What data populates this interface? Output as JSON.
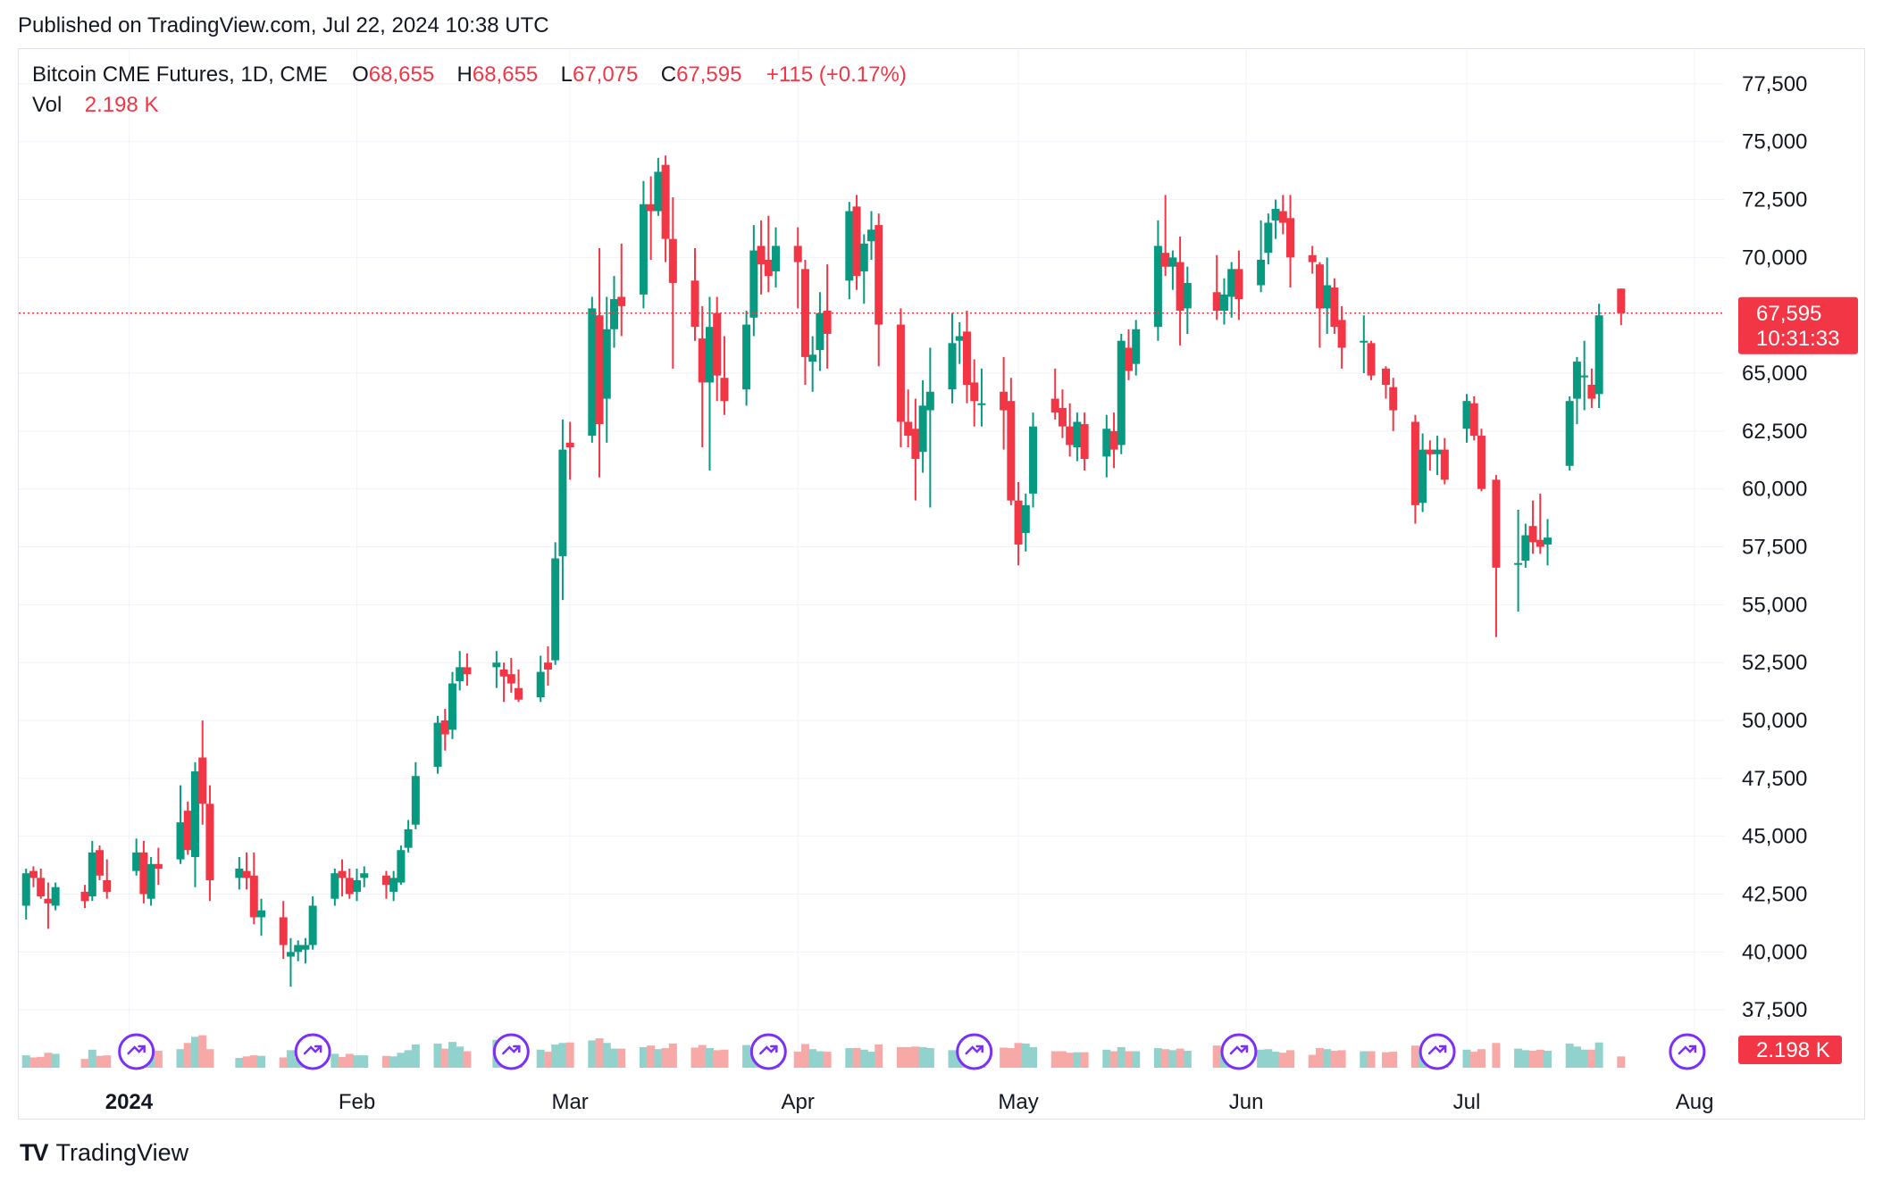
{
  "header": {
    "published": "Published on TradingView.com, Jul 22, 2024 10:38 UTC"
  },
  "legend": {
    "symbol": "Bitcoin CME Futures, 1D, CME",
    "o_label": "O",
    "o_value": "68,655",
    "h_label": "H",
    "h_value": "68,655",
    "l_label": "L",
    "l_value": "67,075",
    "c_label": "C",
    "c_value": "67,595",
    "change": "+115 (+0.17%)",
    "vol_label": "Vol",
    "vol_value": "2.198 K"
  },
  "footer": {
    "logo": "TV",
    "brand": "TradingView"
  },
  "colors": {
    "up": "#089981",
    "down": "#f23645",
    "up_volume": "#92d2cc",
    "down_volume": "#f7a9a7",
    "grid": "#f0f3fa",
    "event_icon": "#7b2ff7"
  },
  "chart_data": {
    "type": "candlestick",
    "symbol": "Bitcoin CME Futures, 1D, CME",
    "ylim": [
      35000,
      79000
    ],
    "y_ticks": [
      37500,
      40000,
      42500,
      45000,
      47500,
      50000,
      52500,
      55000,
      57500,
      60000,
      62500,
      65000,
      67500,
      70000,
      72500,
      75000,
      77500
    ],
    "y_tick_labels": [
      "37,500",
      "40,000",
      "42,500",
      "45,000",
      "47,500",
      "50,000",
      "52,500",
      "55,000",
      "57,500",
      "60,000",
      "62,500",
      "65,000",
      "67,500",
      "70,000",
      "72,500",
      "75,000",
      "77,500"
    ],
    "x_ticks": [
      {
        "date": "2024-01-01",
        "label": "2024",
        "bold": true
      },
      {
        "date": "2024-02-01",
        "label": "Feb"
      },
      {
        "date": "2024-03-01",
        "label": "Mar"
      },
      {
        "date": "2024-04-01",
        "label": "Apr"
      },
      {
        "date": "2024-05-01",
        "label": "May"
      },
      {
        "date": "2024-06-01",
        "label": "Jun"
      },
      {
        "date": "2024-07-01",
        "label": "Jul"
      },
      {
        "date": "2024-08-01",
        "label": "Aug"
      }
    ],
    "x_range": [
      "2023-12-17",
      "2024-08-05"
    ],
    "last_price": {
      "value": 67595,
      "label": "67,595",
      "countdown": "10:31:33"
    },
    "volume_label": "2.198 K",
    "volume_max": 45000,
    "candles": [
      [
        "2023-12-18",
        42000,
        43600,
        41400,
        43400,
        2400
      ],
      [
        "2023-12-19",
        43500,
        43700,
        42800,
        43200,
        2000
      ],
      [
        "2023-12-20",
        43200,
        43600,
        42300,
        42400,
        2100
      ],
      [
        "2023-12-21",
        42300,
        43000,
        41000,
        42100,
        2900
      ],
      [
        "2023-12-22",
        42000,
        43000,
        41800,
        42800,
        2700
      ],
      [
        "2023-12-26",
        42600,
        42900,
        41900,
        42200,
        1700
      ],
      [
        "2023-12-27",
        42400,
        44800,
        42200,
        44300,
        3500
      ],
      [
        "2023-12-28",
        44400,
        44600,
        43100,
        43300,
        2300
      ],
      [
        "2023-12-29",
        43100,
        44000,
        42300,
        42600,
        2400
      ],
      [
        "2024-01-02",
        43500,
        44900,
        43300,
        44300,
        3800
      ],
      [
        "2024-01-03",
        44300,
        44800,
        42100,
        42500,
        5400
      ],
      [
        "2024-01-04",
        42300,
        44100,
        42000,
        43800,
        3600
      ],
      [
        "2024-01-05",
        43800,
        44500,
        42900,
        43600,
        3300
      ],
      [
        "2024-01-08",
        44000,
        47200,
        43800,
        45600,
        3600
      ],
      [
        "2024-01-09",
        46100,
        46500,
        44200,
        44400,
        4800
      ],
      [
        "2024-01-10",
        44100,
        48200,
        42800,
        47800,
        6000
      ],
      [
        "2024-01-11",
        48400,
        50000,
        45500,
        46400,
        6300
      ],
      [
        "2024-01-12",
        46400,
        47200,
        42200,
        43100,
        3600
      ],
      [
        "2024-01-16",
        43200,
        44100,
        42700,
        43600,
        1900
      ],
      [
        "2024-01-17",
        43500,
        44300,
        42700,
        43200,
        2200
      ],
      [
        "2024-01-18",
        43300,
        44300,
        41200,
        41500,
        2400
      ],
      [
        "2024-01-19",
        41500,
        42300,
        40700,
        41800,
        2300
      ],
      [
        "2024-01-22",
        41500,
        42200,
        39700,
        40300,
        2000
      ],
      [
        "2024-01-23",
        39800,
        40600,
        38500,
        40000,
        3400
      ],
      [
        "2024-01-24",
        40000,
        40500,
        39600,
        40300,
        1800
      ],
      [
        "2024-01-25",
        40100,
        40600,
        39500,
        40300,
        1800
      ],
      [
        "2024-01-26",
        40300,
        42400,
        40100,
        42000,
        3100
      ],
      [
        "2024-01-29",
        42300,
        43600,
        42000,
        43400,
        2700
      ],
      [
        "2024-01-30",
        43500,
        44000,
        42400,
        43200,
        2100
      ],
      [
        "2024-01-31",
        43200,
        43600,
        42300,
        42500,
        2700
      ],
      [
        "2024-02-01",
        42600,
        43600,
        42200,
        43100,
        2400
      ],
      [
        "2024-02-02",
        43200,
        43700,
        42800,
        43400,
        2400
      ],
      [
        "2024-02-05",
        43300,
        43500,
        42300,
        42900,
        2300
      ],
      [
        "2024-02-06",
        42600,
        43500,
        42200,
        43200,
        2200
      ],
      [
        "2024-02-07",
        43000,
        44600,
        42900,
        44400,
        2900
      ],
      [
        "2024-02-08",
        44500,
        45700,
        44300,
        45300,
        3400
      ],
      [
        "2024-02-09",
        45500,
        48200,
        45300,
        47600,
        4500
      ],
      [
        "2024-02-12",
        48000,
        50200,
        47700,
        49900,
        4700
      ],
      [
        "2024-02-13",
        50000,
        50500,
        48700,
        49400,
        3700
      ],
      [
        "2024-02-14",
        49600,
        52100,
        49200,
        51600,
        5000
      ],
      [
        "2024-02-15",
        51700,
        53000,
        51300,
        52300,
        4100
      ],
      [
        "2024-02-16",
        52300,
        52900,
        51500,
        52000,
        3200
      ],
      [
        "2024-02-20",
        52300,
        53000,
        51400,
        52500,
        5400
      ],
      [
        "2024-02-21",
        52200,
        52500,
        50800,
        51900,
        4200
      ],
      [
        "2024-02-22",
        52000,
        52700,
        51200,
        51600,
        3200
      ],
      [
        "2024-02-23",
        51400,
        52200,
        50800,
        50900,
        3100
      ],
      [
        "2024-02-26",
        51000,
        52800,
        50800,
        52100,
        3500
      ],
      [
        "2024-02-27",
        52500,
        53200,
        51500,
        52200,
        3100
      ],
      [
        "2024-02-28",
        52600,
        57700,
        52400,
        57000,
        4500
      ],
      [
        "2024-02-29",
        57100,
        63000,
        55200,
        61700,
        4800
      ],
      [
        "2024-03-01",
        62000,
        62900,
        60400,
        61800,
        4900
      ],
      [
        "2024-03-04",
        62300,
        68300,
        62000,
        67800,
        5300
      ],
      [
        "2024-03-05",
        67500,
        70400,
        60500,
        62800,
        5700
      ],
      [
        "2024-03-06",
        63900,
        68300,
        62000,
        66900,
        4800
      ],
      [
        "2024-03-07",
        66900,
        69200,
        66100,
        68200,
        3700
      ],
      [
        "2024-03-08",
        68300,
        70600,
        66600,
        67900,
        3700
      ],
      [
        "2024-03-11",
        68400,
        73300,
        67800,
        72300,
        4000
      ],
      [
        "2024-03-12",
        72300,
        73500,
        69900,
        72000,
        4300
      ],
      [
        "2024-03-13",
        72000,
        74300,
        71800,
        73700,
        3600
      ],
      [
        "2024-03-14",
        74000,
        74400,
        69800,
        70800,
        3800
      ],
      [
        "2024-03-15",
        70800,
        72600,
        65200,
        68900,
        4700
      ],
      [
        "2024-03-18",
        69000,
        70400,
        66400,
        67000,
        3900
      ],
      [
        "2024-03-19",
        66500,
        67900,
        61800,
        64600,
        4400
      ],
      [
        "2024-03-20",
        64600,
        68300,
        60800,
        67000,
        3800
      ],
      [
        "2024-03-21",
        67600,
        68300,
        63800,
        64900,
        3400
      ],
      [
        "2024-03-22",
        64800,
        66600,
        63200,
        63800,
        3500
      ],
      [
        "2024-03-25",
        64300,
        67700,
        63600,
        67100,
        4400
      ],
      [
        "2024-03-26",
        67400,
        71400,
        66600,
        70300,
        3900
      ],
      [
        "2024-03-27",
        70500,
        71600,
        68400,
        69700,
        4000
      ],
      [
        "2024-03-28",
        69900,
        71800,
        68500,
        69200,
        3000
      ],
      [
        "2024-03-29",
        69400,
        71300,
        68700,
        70500,
        3100
      ],
      [
        "2024-04-01",
        70500,
        71300,
        67800,
        69800,
        3100
      ],
      [
        "2024-04-02",
        69500,
        69900,
        64500,
        65700,
        4600
      ],
      [
        "2024-04-03",
        65500,
        66600,
        64200,
        65800,
        3600
      ],
      [
        "2024-04-04",
        66000,
        68500,
        65100,
        67600,
        3200
      ],
      [
        "2024-04-05",
        67700,
        69700,
        65200,
        66700,
        3100
      ],
      [
        "2024-04-08",
        69000,
        72400,
        68200,
        72000,
        3800
      ],
      [
        "2024-04-09",
        72200,
        72700,
        68600,
        69200,
        3800
      ],
      [
        "2024-04-10",
        69400,
        71000,
        68000,
        70600,
        3500
      ],
      [
        "2024-04-11",
        70700,
        72000,
        69900,
        71200,
        3100
      ],
      [
        "2024-04-12",
        71400,
        71900,
        65300,
        67100,
        4500
      ],
      [
        "2024-04-15",
        67100,
        67800,
        61800,
        62900,
        4000
      ],
      [
        "2024-04-16",
        62900,
        64300,
        61800,
        62300,
        4000
      ],
      [
        "2024-04-17",
        62600,
        63900,
        59500,
        61300,
        4100
      ],
      [
        "2024-04-18",
        61600,
        64700,
        60700,
        63600,
        4000
      ],
      [
        "2024-04-19",
        63400,
        66100,
        59200,
        64200,
        3800
      ],
      [
        "2024-04-22",
        64300,
        67600,
        63700,
        66300,
        3400
      ],
      [
        "2024-04-23",
        66400,
        67200,
        65400,
        66600,
        3300
      ],
      [
        "2024-04-24",
        66800,
        67700,
        63700,
        64500,
        3700
      ],
      [
        "2024-04-25",
        64600,
        65600,
        62700,
        63800,
        3600
      ],
      [
        "2024-04-26",
        63700,
        65200,
        62700,
        63700,
        3000
      ],
      [
        "2024-04-29",
        64200,
        65700,
        61700,
        63400,
        3900
      ],
      [
        "2024-04-30",
        63800,
        64800,
        59300,
        59500,
        3800
      ],
      [
        "2024-05-01",
        59500,
        60300,
        56700,
        57600,
        4800
      ],
      [
        "2024-05-02",
        58100,
        59800,
        57300,
        59300,
        4700
      ],
      [
        "2024-05-03",
        59800,
        63300,
        59200,
        62700,
        4000
      ],
      [
        "2024-05-06",
        63900,
        65200,
        63000,
        63300,
        3200
      ],
      [
        "2024-05-07",
        63500,
        64300,
        62200,
        62700,
        3200
      ],
      [
        "2024-05-08",
        62700,
        63700,
        61400,
        61900,
        2900
      ],
      [
        "2024-05-09",
        61800,
        63300,
        61200,
        62900,
        3000
      ],
      [
        "2024-05-10",
        62800,
        63300,
        60800,
        61300,
        3000
      ],
      [
        "2024-05-13",
        61400,
        63200,
        60500,
        62600,
        3500
      ],
      [
        "2024-05-14",
        62500,
        63300,
        60900,
        61700,
        3200
      ],
      [
        "2024-05-15",
        61900,
        66700,
        61500,
        66400,
        4000
      ],
      [
        "2024-05-16",
        66100,
        66900,
        64700,
        65100,
        3200
      ],
      [
        "2024-05-17",
        65400,
        67300,
        64900,
        66900,
        3200
      ],
      [
        "2024-05-20",
        67000,
        71600,
        66400,
        70500,
        3800
      ],
      [
        "2024-05-21",
        70200,
        72700,
        69200,
        69600,
        3600
      ],
      [
        "2024-05-22",
        69600,
        70300,
        68600,
        70000,
        3400
      ],
      [
        "2024-05-23",
        69800,
        70900,
        66200,
        67700,
        3700
      ],
      [
        "2024-05-24",
        67800,
        69600,
        66700,
        68900,
        3300
      ],
      [
        "2024-05-28",
        68500,
        70100,
        67300,
        67700,
        4300
      ],
      [
        "2024-05-29",
        67700,
        69100,
        67100,
        68400,
        2800
      ],
      [
        "2024-05-30",
        68300,
        69800,
        67400,
        69500,
        3300
      ],
      [
        "2024-05-31",
        69500,
        70300,
        67300,
        68200,
        3000
      ],
      [
        "2024-06-03",
        68800,
        71600,
        68500,
        69900,
        3500
      ],
      [
        "2024-06-04",
        70200,
        71900,
        69700,
        71500,
        3600
      ],
      [
        "2024-06-05",
        71600,
        72500,
        70800,
        72100,
        3100
      ],
      [
        "2024-06-06",
        72000,
        72700,
        71000,
        71500,
        2900
      ],
      [
        "2024-06-07",
        71700,
        72700,
        68700,
        70000,
        3400
      ],
      [
        "2024-06-10",
        70100,
        70500,
        69300,
        69800,
        2500
      ],
      [
        "2024-06-11",
        69700,
        69800,
        66100,
        67800,
        3800
      ],
      [
        "2024-06-12",
        67800,
        70000,
        66700,
        68800,
        3600
      ],
      [
        "2024-06-13",
        68700,
        69100,
        66700,
        67000,
        3300
      ],
      [
        "2024-06-14",
        67300,
        67900,
        65200,
        66100,
        3400
      ],
      [
        "2024-06-17",
        66400,
        67500,
        65000,
        66400,
        3200
      ],
      [
        "2024-06-18",
        66300,
        66400,
        64700,
        64900,
        3200
      ],
      [
        "2024-06-20",
        65200,
        65300,
        63900,
        64500,
        3000
      ],
      [
        "2024-06-21",
        64400,
        64800,
        62500,
        63400,
        3100
      ],
      [
        "2024-06-24",
        62900,
        63200,
        58500,
        59300,
        4300
      ],
      [
        "2024-06-25",
        59400,
        62400,
        59000,
        61700,
        3400
      ],
      [
        "2024-06-26",
        61700,
        62100,
        60800,
        61500,
        2800
      ],
      [
        "2024-06-27",
        61500,
        62300,
        60600,
        61700,
        2800
      ],
      [
        "2024-06-28",
        61700,
        62200,
        60200,
        60400,
        2900
      ],
      [
        "2024-07-01",
        62600,
        64100,
        62000,
        63800,
        3500
      ],
      [
        "2024-07-02",
        63700,
        64000,
        62100,
        62300,
        3100
      ],
      [
        "2024-07-03",
        62300,
        62600,
        59900,
        60000,
        3600
      ],
      [
        "2024-07-05",
        60400,
        60600,
        53600,
        56600,
        4800
      ],
      [
        "2024-07-08",
        56800,
        59100,
        54700,
        56800,
        3700
      ],
      [
        "2024-07-09",
        56900,
        58500,
        56600,
        58000,
        3400
      ],
      [
        "2024-07-10",
        58400,
        59500,
        57200,
        57700,
        3300
      ],
      [
        "2024-07-11",
        57800,
        59800,
        57200,
        57500,
        3500
      ],
      [
        "2024-07-12",
        57600,
        58700,
        56700,
        57900,
        3300
      ],
      [
        "2024-07-15",
        61000,
        64000,
        60800,
        63800,
        4700
      ],
      [
        "2024-07-16",
        63900,
        65700,
        62800,
        65500,
        4100
      ],
      [
        "2024-07-17",
        64900,
        66400,
        63400,
        64900,
        3500
      ],
      [
        "2024-07-18",
        64500,
        65200,
        63500,
        63900,
        3500
      ],
      [
        "2024-07-19",
        64100,
        68000,
        63500,
        67500,
        4900
      ],
      [
        "2024-07-22",
        68655,
        68655,
        67075,
        67595,
        2198
      ]
    ]
  }
}
